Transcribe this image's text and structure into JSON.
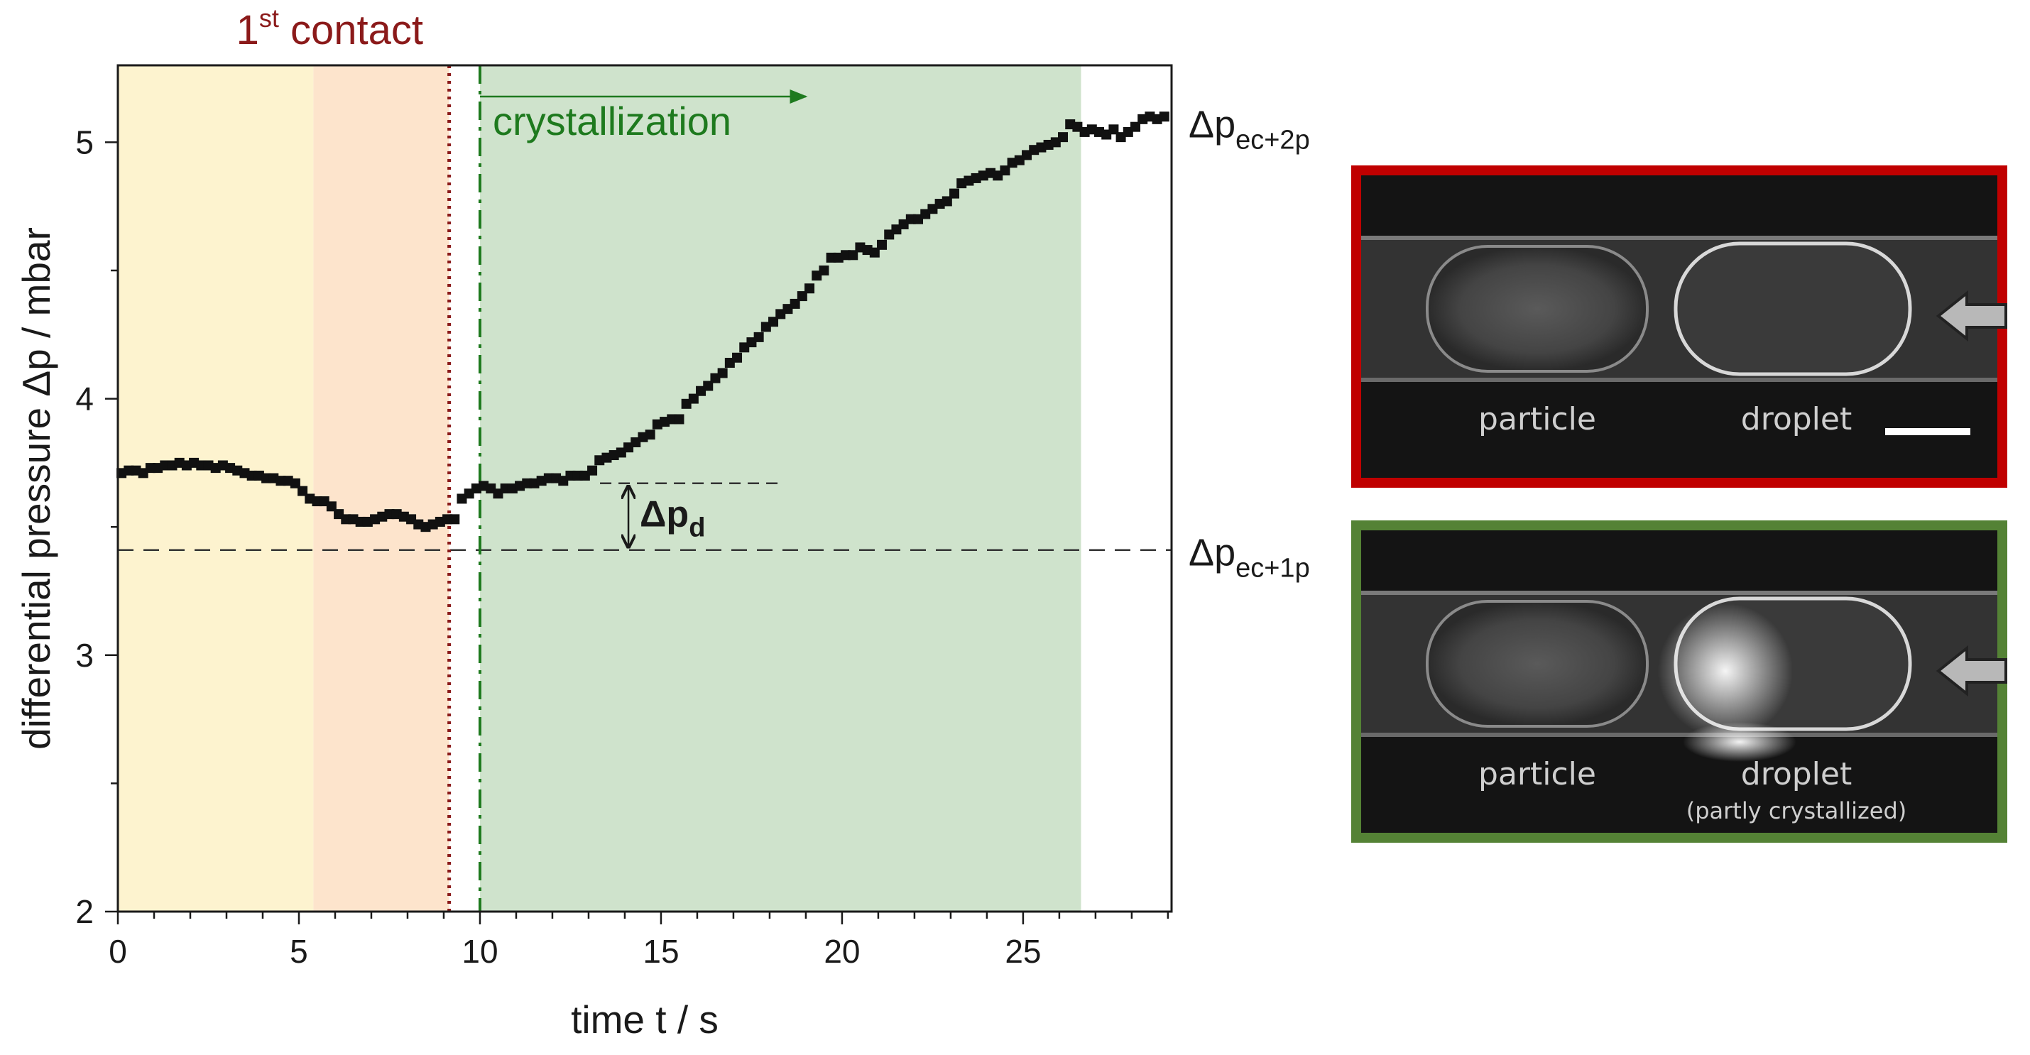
{
  "chart_data": {
    "type": "scatter",
    "title": "",
    "xlabel": "time t  /  s",
    "ylabel": "differential pressure Δp  /  mbar",
    "xlim": [
      0,
      29.1
    ],
    "ylim": [
      2,
      5.3
    ],
    "xticks": [
      0,
      5,
      10,
      15,
      20,
      25
    ],
    "yticks": [
      2,
      3,
      4,
      5
    ],
    "x_minor_step": 1,
    "y_minor_step": 0.5,
    "grid": false,
    "background_bands": [
      {
        "x0": 0,
        "x1": 5.4,
        "color": "#fdf3cf"
      },
      {
        "x0": 5.4,
        "x1": 9.15,
        "color": "#fde4cc"
      },
      {
        "x0": 10.0,
        "x1": 26.6,
        "color": "#cfe3cc"
      }
    ],
    "events": [
      {
        "x": 9.15,
        "label_main": "1",
        "label_sup": "st",
        "label_rest": " contact",
        "color": "#8b1a1a",
        "style": "dotted"
      },
      {
        "x": 10.0,
        "label": "crystallization",
        "color": "#1e7a1e",
        "style": "dashdot",
        "arrow_to": 19.0
      }
    ],
    "reference_lines": [
      {
        "y": 3.41,
        "label_main": "Δp",
        "label_sub": "ec+1p",
        "style": "dashed"
      },
      {
        "y": 5.08,
        "label_main": "Δp",
        "label_sub": "ec+2p",
        "style": "none"
      }
    ],
    "delta_marker": {
      "x": 14.1,
      "y_low": 3.41,
      "y_high": 3.67,
      "line_x_end": 18.3,
      "label_main": "Δp",
      "label_sub": "d"
    },
    "series": [
      {
        "color": "#111111",
        "x": [
          0.1,
          0.3,
          0.5,
          0.7,
          0.9,
          1.1,
          1.3,
          1.5,
          1.7,
          1.9,
          2.1,
          2.3,
          2.5,
          2.7,
          2.9,
          3.1,
          3.3,
          3.5,
          3.7,
          3.9,
          4.1,
          4.3,
          4.5,
          4.7,
          4.9,
          5.1,
          5.3,
          5.5,
          5.7,
          5.9,
          6.1,
          6.3,
          6.5,
          6.7,
          6.9,
          7.1,
          7.3,
          7.5,
          7.7,
          7.9,
          8.1,
          8.3,
          8.5,
          8.7,
          8.9,
          9.1,
          9.3,
          9.5,
          9.7,
          9.9,
          10.1,
          10.3,
          10.5,
          10.7,
          10.9,
          11.1,
          11.3,
          11.5,
          11.7,
          11.9,
          12.1,
          12.3,
          12.5,
          12.7,
          12.9,
          13.1,
          13.3,
          13.5,
          13.7,
          13.9,
          14.1,
          14.3,
          14.5,
          14.7,
          14.9,
          15.1,
          15.3,
          15.5,
          15.7,
          15.9,
          16.1,
          16.3,
          16.5,
          16.7,
          16.9,
          17.1,
          17.3,
          17.5,
          17.7,
          17.9,
          18.1,
          18.3,
          18.5,
          18.7,
          18.9,
          19.1,
          19.3,
          19.5,
          19.7,
          19.9,
          20.1,
          20.3,
          20.5,
          20.7,
          20.9,
          21.1,
          21.3,
          21.5,
          21.7,
          21.9,
          22.1,
          22.3,
          22.5,
          22.7,
          22.9,
          23.1,
          23.3,
          23.5,
          23.7,
          23.9,
          24.1,
          24.3,
          24.5,
          24.7,
          24.9,
          25.1,
          25.3,
          25.5,
          25.7,
          25.9,
          26.1,
          26.3,
          26.5,
          26.7,
          26.9,
          27.1,
          27.3,
          27.5,
          27.7,
          27.9,
          28.1,
          28.3,
          28.5,
          28.7,
          28.9
        ],
        "y": [
          3.71,
          3.72,
          3.72,
          3.71,
          3.73,
          3.73,
          3.74,
          3.74,
          3.75,
          3.74,
          3.75,
          3.74,
          3.74,
          3.73,
          3.74,
          3.73,
          3.72,
          3.71,
          3.7,
          3.7,
          3.69,
          3.69,
          3.68,
          3.68,
          3.67,
          3.64,
          3.61,
          3.6,
          3.6,
          3.58,
          3.55,
          3.53,
          3.53,
          3.52,
          3.52,
          3.53,
          3.54,
          3.55,
          3.55,
          3.54,
          3.53,
          3.51,
          3.5,
          3.51,
          3.52,
          3.53,
          3.53,
          3.61,
          3.63,
          3.65,
          3.66,
          3.65,
          3.63,
          3.65,
          3.65,
          3.66,
          3.67,
          3.67,
          3.68,
          3.69,
          3.69,
          3.68,
          3.7,
          3.7,
          3.7,
          3.72,
          3.76,
          3.77,
          3.78,
          3.79,
          3.81,
          3.83,
          3.85,
          3.86,
          3.9,
          3.91,
          3.92,
          3.92,
          3.98,
          4.0,
          4.03,
          4.05,
          4.08,
          4.1,
          4.14,
          4.16,
          4.2,
          4.22,
          4.24,
          4.28,
          4.3,
          4.33,
          4.35,
          4.37,
          4.4,
          4.43,
          4.48,
          4.5,
          4.55,
          4.55,
          4.56,
          4.56,
          4.59,
          4.58,
          4.57,
          4.6,
          4.64,
          4.66,
          4.68,
          4.7,
          4.7,
          4.72,
          4.74,
          4.76,
          4.77,
          4.8,
          4.84,
          4.85,
          4.86,
          4.87,
          4.88,
          4.87,
          4.89,
          4.92,
          4.93,
          4.95,
          4.97,
          4.98,
          4.99,
          5.0,
          5.02,
          5.07,
          5.06,
          5.04,
          5.05,
          5.04,
          5.03,
          5.05,
          5.02,
          5.04,
          5.06,
          5.09,
          5.1,
          5.09,
          5.1
        ]
      }
    ]
  },
  "images": [
    {
      "frame_color": "#c00000",
      "label_particle": "particle",
      "label_droplet": "droplet",
      "sublabel": "",
      "has_scalebar": true,
      "partly_crystallized": false
    },
    {
      "frame_color": "#548235",
      "label_particle": "particle",
      "label_droplet": "droplet",
      "sublabel": "(partly crystallized)",
      "has_scalebar": false,
      "partly_crystallized": true
    }
  ]
}
